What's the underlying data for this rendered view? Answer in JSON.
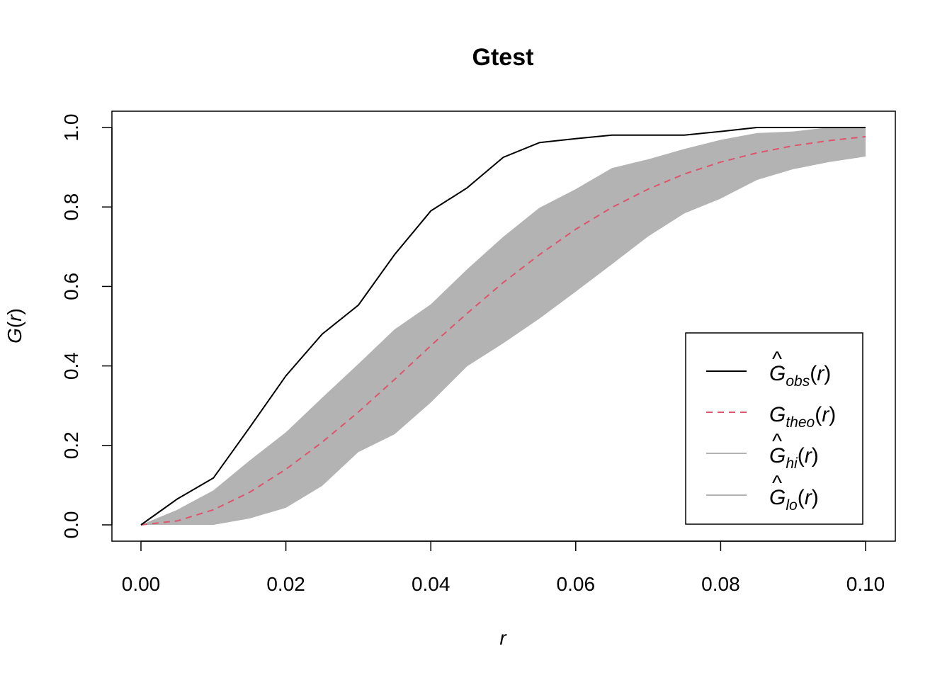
{
  "chart_data": {
    "type": "line",
    "title": "Gtest",
    "xlabel": "r",
    "ylabel": "G(r)",
    "xlim": [
      0.0,
      0.1
    ],
    "ylim": [
      0.0,
      1.0
    ],
    "x_ticks": [
      "0.00",
      "0.02",
      "0.04",
      "0.06",
      "0.08",
      "0.10"
    ],
    "x_tick_values": [
      0.0,
      0.02,
      0.04,
      0.06,
      0.08,
      0.1
    ],
    "y_ticks": [
      "0.0",
      "0.2",
      "0.4",
      "0.6",
      "0.8",
      "1.0"
    ],
    "y_tick_values": [
      0.0,
      0.2,
      0.4,
      0.6,
      0.8,
      1.0
    ],
    "grid": false,
    "legend_position": "bottom-right",
    "x": [
      0.0,
      0.005,
      0.01,
      0.015,
      0.02,
      0.025,
      0.03,
      0.035,
      0.04,
      0.045,
      0.05,
      0.055,
      0.06,
      0.065,
      0.07,
      0.075,
      0.08,
      0.085,
      0.09,
      0.095,
      0.1
    ],
    "series": [
      {
        "key": "obs",
        "style": "solid",
        "color": "#000000",
        "values": [
          0.0,
          0.065,
          0.118,
          0.245,
          0.375,
          0.48,
          0.553,
          0.68,
          0.79,
          0.848,
          0.925,
          0.962,
          0.972,
          0.981,
          0.981,
          0.981,
          0.99,
          1.0,
          1.0,
          1.0,
          1.0
        ]
      },
      {
        "key": "theo",
        "style": "dashed",
        "color": "#DF536B",
        "values": [
          0.0,
          0.01,
          0.038,
          0.082,
          0.14,
          0.208,
          0.284,
          0.366,
          0.451,
          0.532,
          0.61,
          0.68,
          0.744,
          0.799,
          0.845,
          0.883,
          0.913,
          0.936,
          0.954,
          0.967,
          0.977
        ]
      },
      {
        "key": "hi",
        "style": "band-upper",
        "color": "#B3B3B3",
        "values": [
          0.0,
          0.038,
          0.087,
          0.162,
          0.233,
          0.32,
          0.405,
          0.492,
          0.555,
          0.643,
          0.725,
          0.798,
          0.845,
          0.898,
          0.92,
          0.946,
          0.969,
          0.986,
          0.99,
          1.0,
          1.0
        ]
      },
      {
        "key": "lo",
        "style": "band-lower",
        "color": "#B3B3B3",
        "values": [
          0.0,
          0.0,
          0.0,
          0.016,
          0.043,
          0.098,
          0.183,
          0.228,
          0.308,
          0.399,
          0.457,
          0.519,
          0.587,
          0.656,
          0.726,
          0.784,
          0.821,
          0.868,
          0.895,
          0.913,
          0.927
        ]
      }
    ],
    "legend": [
      {
        "key": "obs",
        "main": "G",
        "hat": true,
        "sub": "obs",
        "arg": "(r)",
        "style": "solid",
        "color": "#000000"
      },
      {
        "key": "theo",
        "main": "G",
        "hat": false,
        "sub": "theo",
        "arg": "(r)",
        "style": "dashed",
        "color": "#DF536B"
      },
      {
        "key": "hi",
        "main": "G",
        "hat": true,
        "sub": "hi",
        "arg": "(r)",
        "style": "solid",
        "color": "#B3B3B3"
      },
      {
        "key": "lo",
        "main": "G",
        "hat": true,
        "sub": "lo",
        "arg": "(r)",
        "style": "solid",
        "color": "#B3B3B3"
      }
    ],
    "colors": {
      "band_fill": "#B3B3B3",
      "axis": "#000000",
      "theo_line": "#DF536B"
    }
  }
}
